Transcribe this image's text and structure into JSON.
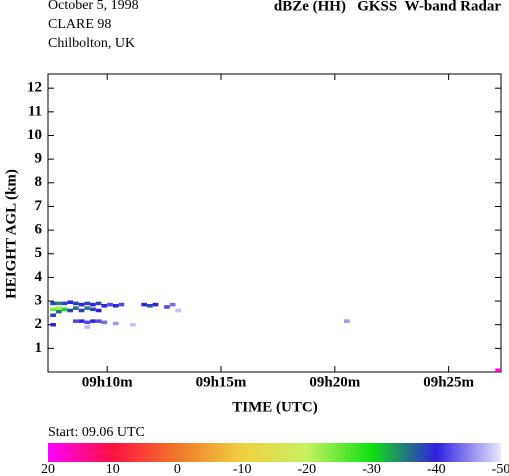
{
  "chart_data": {
    "type": "heatmap",
    "title": "dBZe (HH)   GKSS  W-band Radar",
    "annotations": [
      "October 5, 1998",
      "CLARE 98",
      "Chilbolton, UK"
    ],
    "xlabel": "TIME (UTC)",
    "ylabel": "HEIGHT AGL (km)",
    "xlim": [
      7.4,
      27.3
    ],
    "xticks": [
      {
        "value": 10,
        "label": "09h10m"
      },
      {
        "value": 15,
        "label": "09h15m"
      },
      {
        "value": 20,
        "label": "09h20m"
      },
      {
        "value": 25,
        "label": "09h25m"
      }
    ],
    "ylim": [
      0,
      12.6
    ],
    "yticks": [
      1,
      2,
      3,
      4,
      5,
      6,
      7,
      8,
      9,
      10,
      11,
      12
    ],
    "x": [
      7.5,
      7.75,
      8.0,
      8.25,
      8.5,
      8.75,
      9.0,
      9.25,
      9.5,
      9.75,
      10.0,
      10.25,
      10.5,
      7.5,
      7.75,
      8.0,
      7.5,
      7.75,
      8.25,
      8.5,
      8.75,
      9.0,
      9.25,
      9.5,
      11.5,
      11.75,
      12.0,
      12.5,
      12.75,
      13.0,
      8.5,
      8.75,
      9.0,
      9.25,
      9.5,
      9.75,
      10.25,
      7.5,
      9.0,
      11.0,
      20.4,
      27.2
    ],
    "y": [
      2.9,
      2.9,
      2.9,
      2.95,
      2.9,
      2.85,
      2.9,
      2.85,
      2.9,
      2.8,
      2.85,
      2.8,
      2.85,
      2.65,
      2.7,
      2.65,
      2.4,
      2.55,
      2.6,
      2.7,
      2.6,
      2.7,
      2.65,
      2.6,
      2.85,
      2.8,
      2.85,
      2.75,
      2.85,
      2.6,
      2.15,
      2.15,
      2.1,
      2.15,
      2.15,
      2.1,
      2.05,
      2.0,
      1.9,
      2.0,
      2.15,
      0.05
    ],
    "values": [
      -38,
      -35,
      -38,
      -40,
      -38,
      -40,
      -38,
      -40,
      -38,
      -40,
      -42,
      -40,
      -42,
      -25,
      -22,
      -30,
      -38,
      -36,
      -38,
      -36,
      -38,
      -35,
      -38,
      -40,
      -40,
      -38,
      -40,
      -42,
      -44,
      -48,
      -42,
      -40,
      -42,
      -40,
      -42,
      -44,
      -46,
      -40,
      -48,
      -48,
      -46,
      18
    ],
    "colorbar": {
      "label": "Start: 09.06 UTC",
      "lim": [
        20,
        -50
      ],
      "ticks": [
        20,
        10,
        0,
        -10,
        -20,
        -30,
        -40,
        -50
      ],
      "colors": [
        "#ff00ff",
        "#ff1040",
        "#f07828",
        "#f0d040",
        "#c8f060",
        "#10e010",
        "#3020e0",
        "#e8e8ff"
      ]
    }
  }
}
